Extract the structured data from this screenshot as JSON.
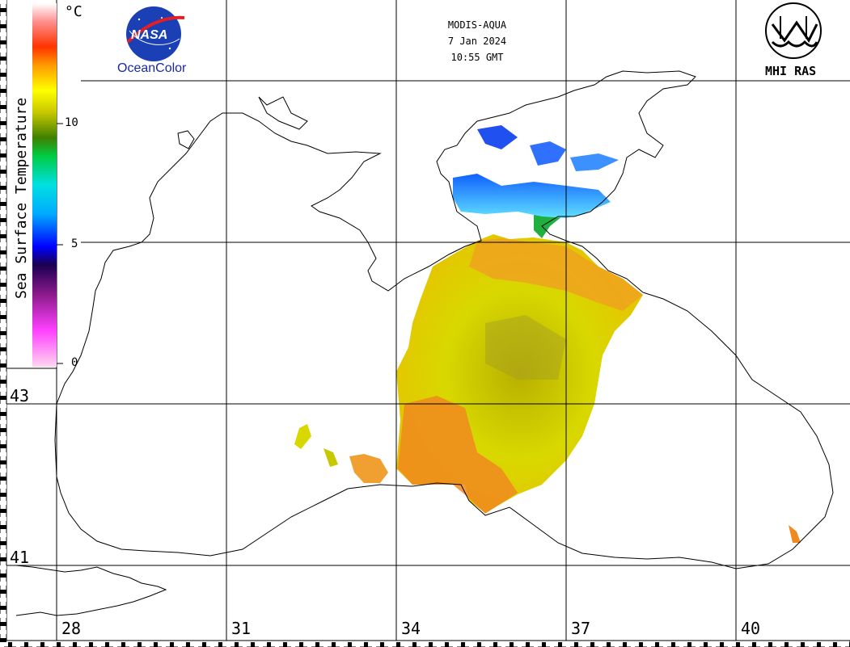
{
  "header": {
    "sensor": "MODIS-AQUA",
    "date": "7 Jan 2024",
    "time": "10:55 GMT"
  },
  "logos": {
    "nasa_text": "NASA",
    "oceancolor_text": "OceanColor",
    "mhi_text": "MHI RAS"
  },
  "colorbar": {
    "title": "Sea Surface Temperature",
    "unit": "°C",
    "ticks": [
      "10",
      "5",
      "0"
    ],
    "range": [
      0,
      15
    ],
    "colors": [
      "#ffd6f0",
      "#ff4dff",
      "#9a1a9a",
      "#2a0a6a",
      "#0000ff",
      "#00aaff",
      "#00e0e0",
      "#00cc44",
      "#5a9a00",
      "#c8c800",
      "#ffff00",
      "#ff9900",
      "#ff3300",
      "#ff8a8a",
      "#ffffff"
    ]
  },
  "axes": {
    "latitudes": [
      "43",
      "41"
    ],
    "longitudes": [
      "28",
      "31",
      "34",
      "37",
      "40"
    ]
  },
  "palette": {
    "grid": "#000000",
    "coast": "#000000",
    "sst_warm": "#f08020",
    "sst_mid": "#d8d800",
    "sst_cool": "#40a0ff"
  }
}
